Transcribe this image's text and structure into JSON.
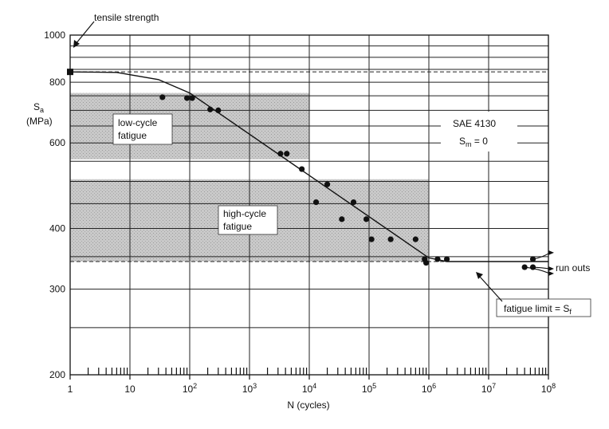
{
  "chart_data": {
    "type": "scatter",
    "x_scale": "log",
    "y_scale": "log",
    "xlim": [
      1,
      100000000
    ],
    "ylim": [
      200,
      1000
    ],
    "grid": true,
    "x_tick_labels": [
      {
        "value": 1,
        "label": "1"
      },
      {
        "value": 10,
        "label": "10"
      },
      {
        "value": 100,
        "label": "10",
        "exp": "2"
      },
      {
        "value": 1000,
        "label": "10",
        "exp": "3"
      },
      {
        "value": 10000,
        "label": "10",
        "exp": "4"
      },
      {
        "value": 100000,
        "label": "10",
        "exp": "5"
      },
      {
        "value": 1000000,
        "label": "10",
        "exp": "6"
      },
      {
        "value": 10000000,
        "label": "10",
        "exp": "7"
      },
      {
        "value": 100000000,
        "label": "10",
        "exp": "8"
      }
    ],
    "y_tick_labels": [
      {
        "value": 200,
        "label": "200"
      },
      {
        "value": 300,
        "label": "300"
      },
      {
        "value": 400,
        "label": "400"
      },
      {
        "value": 600,
        "label": "600"
      },
      {
        "value": 800,
        "label": "800"
      },
      {
        "value": 1000,
        "label": "1000"
      }
    ],
    "y_gridlines": [
      250,
      300,
      350,
      400,
      450,
      500,
      550,
      600,
      650,
      700,
      750,
      800,
      850,
      900,
      950,
      1000
    ],
    "dashed_levels": [
      840,
      342
    ],
    "xlabel": "N (cycles)",
    "ylabel_main": "S",
    "ylabel_sub": "a",
    "ylabel_unit": "(MPa)",
    "tensile_strength_point": {
      "x": 1,
      "y": 840
    },
    "points": [
      {
        "x": 35,
        "y": 745
      },
      {
        "x": 90,
        "y": 742
      },
      {
        "x": 110,
        "y": 742
      },
      {
        "x": 220,
        "y": 703
      },
      {
        "x": 300,
        "y": 700
      },
      {
        "x": 3300,
        "y": 570
      },
      {
        "x": 4200,
        "y": 570
      },
      {
        "x": 7500,
        "y": 530
      },
      {
        "x": 20000,
        "y": 493
      },
      {
        "x": 13000,
        "y": 453
      },
      {
        "x": 35000,
        "y": 418
      },
      {
        "x": 55000,
        "y": 453
      },
      {
        "x": 90000,
        "y": 418
      },
      {
        "x": 110000,
        "y": 380
      },
      {
        "x": 230000,
        "y": 380
      },
      {
        "x": 600000,
        "y": 380
      },
      {
        "x": 850000,
        "y": 346
      },
      {
        "x": 900000,
        "y": 340
      },
      {
        "x": 1400000,
        "y": 346
      },
      {
        "x": 2000000,
        "y": 346
      },
      {
        "x": 40000000,
        "y": 333
      },
      {
        "x": 55000000,
        "y": 346
      },
      {
        "x": 55000000,
        "y": 333
      }
    ],
    "curve": [
      {
        "x": 1,
        "y": 840
      },
      {
        "x": 6,
        "y": 838
      },
      {
        "x": 30,
        "y": 810
      },
      {
        "x": 100,
        "y": 760
      },
      {
        "x": 1000000,
        "y": 348
      },
      {
        "x": 2000000,
        "y": 342
      },
      {
        "x": 100000000,
        "y": 342
      }
    ],
    "regions": [
      {
        "name": "low-cycle",
        "x1": 1,
        "x2": 10000,
        "y1": 555,
        "y2": 760
      },
      {
        "name": "high-cycle",
        "x1": 1,
        "x2": 1000000,
        "y1": 342,
        "y2": 505
      }
    ],
    "annotations": {
      "tensile_strength": "tensile strength",
      "low_cycle_line1": "low-cycle",
      "low_cycle_line2": "fatigue",
      "high_cycle_line1": "high-cycle",
      "high_cycle_line2": "fatigue",
      "material": "SAE 4130",
      "mean_stress_main": "S",
      "mean_stress_sub": "m",
      "mean_stress_value": " = 0",
      "run_outs": "run outs",
      "fatigue_limit": "fatigue limit = S",
      "fatigue_limit_sub": "f"
    }
  }
}
